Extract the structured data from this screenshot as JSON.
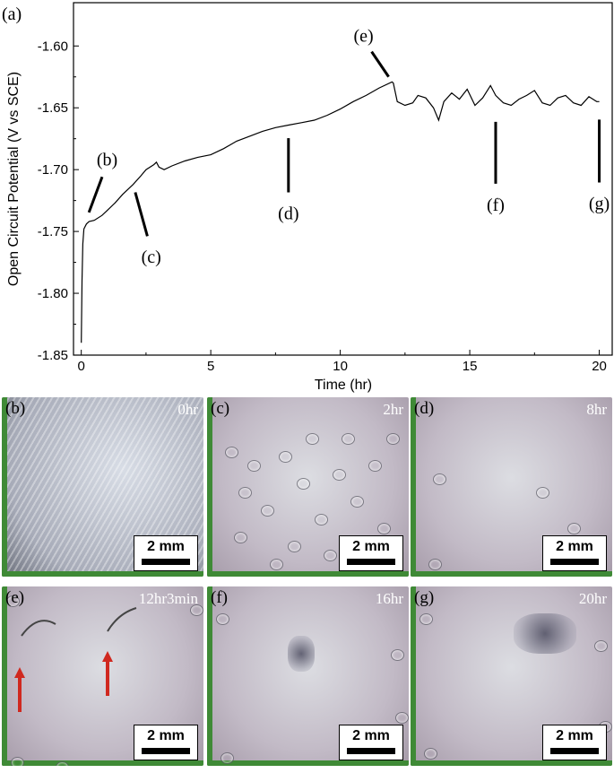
{
  "figure": {
    "panel_label": "(a)",
    "photo_panels": [
      {
        "label": "(b)",
        "time": "0hr",
        "scale": "2 mm",
        "style": "bright"
      },
      {
        "label": "(c)",
        "time": "2hr",
        "scale": "2 mm",
        "style": "bubbles"
      },
      {
        "label": "(d)",
        "time": "8hr",
        "scale": "2 mm",
        "style": "few"
      },
      {
        "label": "(e)",
        "time": "12hr3min",
        "scale": "2 mm",
        "style": "arrows"
      },
      {
        "label": "(f)",
        "time": "16hr",
        "scale": "2 mm",
        "style": "deposit-small"
      },
      {
        "label": "(g)",
        "time": "20hr",
        "scale": "2 mm",
        "style": "deposit-large"
      }
    ],
    "colors": {
      "frame_green": "#3f8a36",
      "arrow_red": "#d0281f",
      "line": "#000000"
    }
  },
  "chart_data": {
    "type": "line",
    "xlabel": "Time (hr)",
    "ylabel": "Open Circuit Potential (V vs SCE)",
    "xlim": [
      -0.3,
      20.5
    ],
    "ylim": [
      -1.85,
      -1.565
    ],
    "xticks": [
      0,
      5,
      10,
      15,
      20
    ],
    "yticks": [
      -1.6,
      -1.65,
      -1.7,
      -1.75,
      -1.8,
      -1.85
    ],
    "ytick_labels": [
      "-1.60",
      "-1.65",
      "-1.70",
      "-1.75",
      "-1.80",
      "-1.85"
    ],
    "series": [
      {
        "x": [
          0.0,
          0.03,
          0.06,
          0.1,
          0.2,
          0.3,
          0.5,
          0.8,
          1.0,
          1.3,
          1.6,
          2.0,
          2.3,
          2.5,
          2.8,
          2.9,
          3.0,
          3.2,
          3.5,
          4.0,
          4.5,
          5.0,
          5.5,
          6.0,
          6.5,
          7.0,
          7.5,
          8.0,
          8.5,
          9.0,
          9.5,
          10.0,
          10.5,
          11.0,
          11.5,
          12.0,
          12.05,
          12.2,
          12.5,
          12.8,
          13.0,
          13.3,
          13.6,
          13.8,
          14.0,
          14.3,
          14.6,
          14.9,
          15.2,
          15.5,
          15.8,
          16.0,
          16.3,
          16.6,
          16.9,
          17.2,
          17.5,
          17.8,
          18.1,
          18.4,
          18.7,
          19.0,
          19.3,
          19.6,
          19.9,
          20.0
        ],
        "y": [
          -1.84,
          -1.79,
          -1.76,
          -1.748,
          -1.744,
          -1.742,
          -1.741,
          -1.737,
          -1.733,
          -1.727,
          -1.72,
          -1.712,
          -1.705,
          -1.7,
          -1.696,
          -1.694,
          -1.698,
          -1.7,
          -1.697,
          -1.693,
          -1.69,
          -1.688,
          -1.683,
          -1.677,
          -1.673,
          -1.669,
          -1.666,
          -1.664,
          -1.662,
          -1.66,
          -1.656,
          -1.651,
          -1.645,
          -1.64,
          -1.634,
          -1.629,
          -1.63,
          -1.645,
          -1.648,
          -1.646,
          -1.64,
          -1.642,
          -1.65,
          -1.66,
          -1.645,
          -1.638,
          -1.643,
          -1.635,
          -1.648,
          -1.642,
          -1.632,
          -1.64,
          -1.646,
          -1.648,
          -1.643,
          -1.64,
          -1.636,
          -1.646,
          -1.648,
          -1.642,
          -1.64,
          -1.646,
          -1.648,
          -1.641,
          -1.645,
          -1.645
        ]
      }
    ],
    "annotations": [
      {
        "text": "(b)",
        "x": 0.2,
        "y": -1.74,
        "label_x": 1.0,
        "label_y": -1.695
      },
      {
        "text": "(c)",
        "x": 2.0,
        "y": -1.712,
        "label_x": 2.7,
        "label_y": -1.765
      },
      {
        "text": "(d)",
        "x": 8.0,
        "y": -1.667,
        "label_x": 8.0,
        "label_y": -1.73
      },
      {
        "text": "(e)",
        "x": 12.0,
        "y": -1.629,
        "label_x": 10.9,
        "label_y": -1.595
      },
      {
        "text": "(f)",
        "x": 16.0,
        "y": -1.653,
        "label_x": 16.0,
        "label_y": -1.723
      },
      {
        "text": "(g)",
        "x": 20.0,
        "y": -1.651,
        "label_x": 20.0,
        "label_y": -1.722
      }
    ]
  }
}
